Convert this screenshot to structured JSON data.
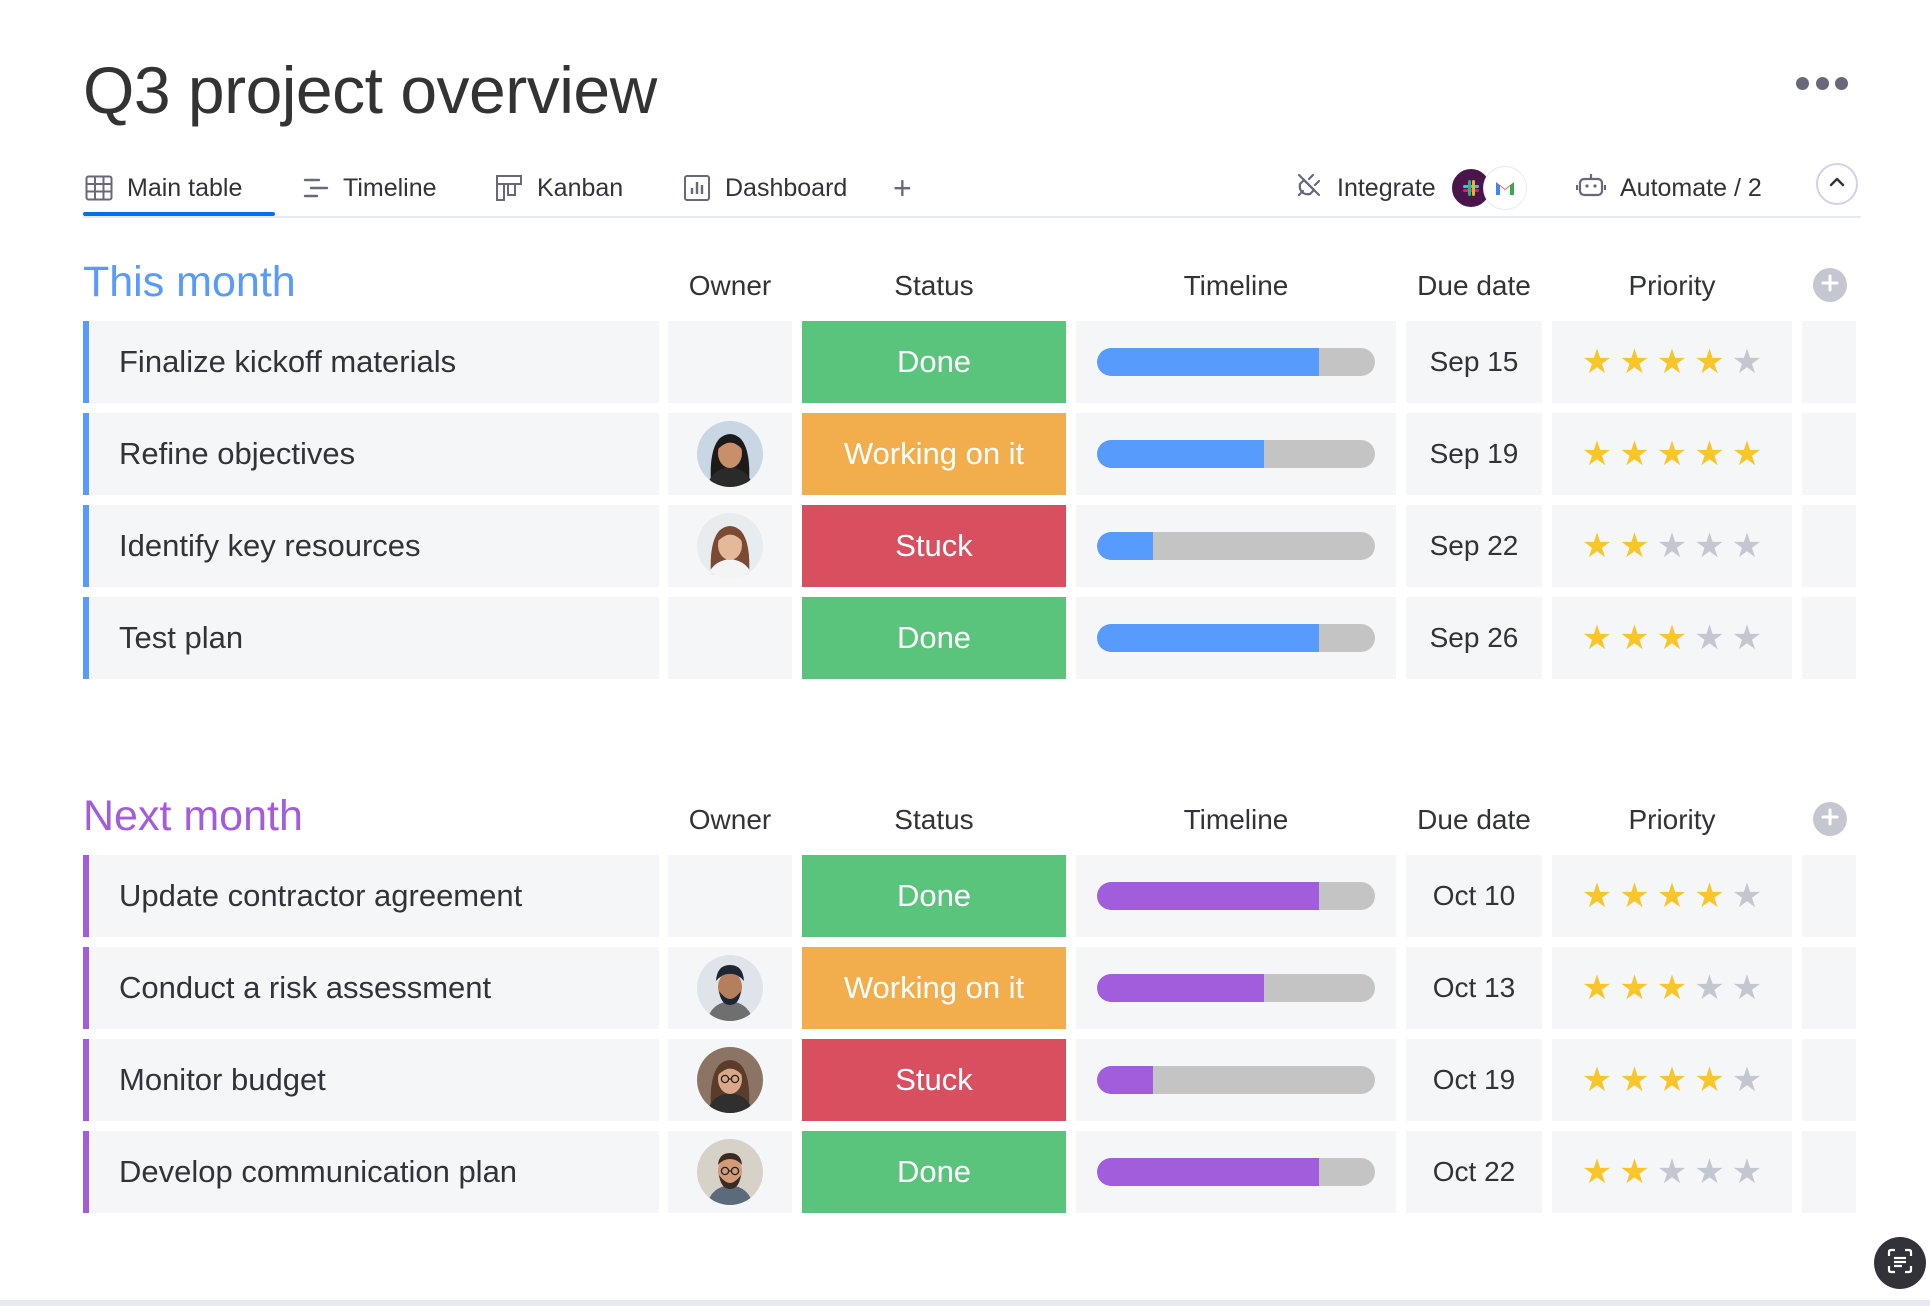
{
  "title": "Q3 project overview",
  "tabs": [
    {
      "label": "Main table",
      "icon": "table-icon",
      "active": true
    },
    {
      "label": "Timeline",
      "icon": "timeline-icon",
      "active": false
    },
    {
      "label": "Kanban",
      "icon": "kanban-icon",
      "active": false
    },
    {
      "label": "Dashboard",
      "icon": "dashboard-icon",
      "active": false
    }
  ],
  "add_tab_label": "+",
  "integrate": {
    "label": "Integrate",
    "apps": [
      "slack-app-icon",
      "gmail-app-icon"
    ]
  },
  "automate": {
    "label": "Automate / 2"
  },
  "columns": {
    "owner": "Owner",
    "status": "Status",
    "timeline": "Timeline",
    "due": "Due date",
    "priority": "Priority"
  },
  "colors": {
    "done": "#5ac47d",
    "working": "#f2ae4d",
    "stuck": "#d8505f",
    "this_month": "#579bfc",
    "next_month": "#a25ddc",
    "star_on": "#f8c62b",
    "star_off": "#c5c7d0",
    "track": "#c4c4c4"
  },
  "groups": [
    {
      "title": "This month",
      "color": "#579bfc",
      "rows": [
        {
          "name": "Finalize kickoff materials",
          "owner": "",
          "status": "Done",
          "status_color": "#5ac47d",
          "progress": 0.8,
          "due": "Sep 15",
          "priority": 4
        },
        {
          "name": "Refine objectives",
          "owner": "woman-dark-hair",
          "status": "Working on it",
          "status_color": "#f2ae4d",
          "progress": 0.6,
          "due": "Sep 19",
          "priority": 5
        },
        {
          "name": "Identify key resources",
          "owner": "woman-auburn-hair",
          "status": "Stuck",
          "status_color": "#d8505f",
          "progress": 0.2,
          "due": "Sep 22",
          "priority": 2
        },
        {
          "name": "Test plan",
          "owner": "",
          "status": "Done",
          "status_color": "#5ac47d",
          "progress": 0.8,
          "due": "Sep 26",
          "priority": 3
        }
      ]
    },
    {
      "title": "Next month",
      "color": "#a25ddc",
      "rows": [
        {
          "name": "Update contractor agreement",
          "owner": "",
          "status": "Done",
          "status_color": "#5ac47d",
          "progress": 0.8,
          "due": "Oct 10",
          "priority": 4
        },
        {
          "name": "Conduct a risk assessment",
          "owner": "man-turban",
          "status": "Working on it",
          "status_color": "#f2ae4d",
          "progress": 0.6,
          "due": "Oct 13",
          "priority": 3
        },
        {
          "name": "Monitor budget",
          "owner": "woman-glasses",
          "status": "Stuck",
          "status_color": "#d8505f",
          "progress": 0.2,
          "due": "Oct 19",
          "priority": 4
        },
        {
          "name": "Develop communication plan",
          "owner": "man-beard",
          "status": "Done",
          "status_color": "#5ac47d",
          "progress": 0.8,
          "due": "Oct 22",
          "priority": 2
        }
      ]
    }
  ]
}
